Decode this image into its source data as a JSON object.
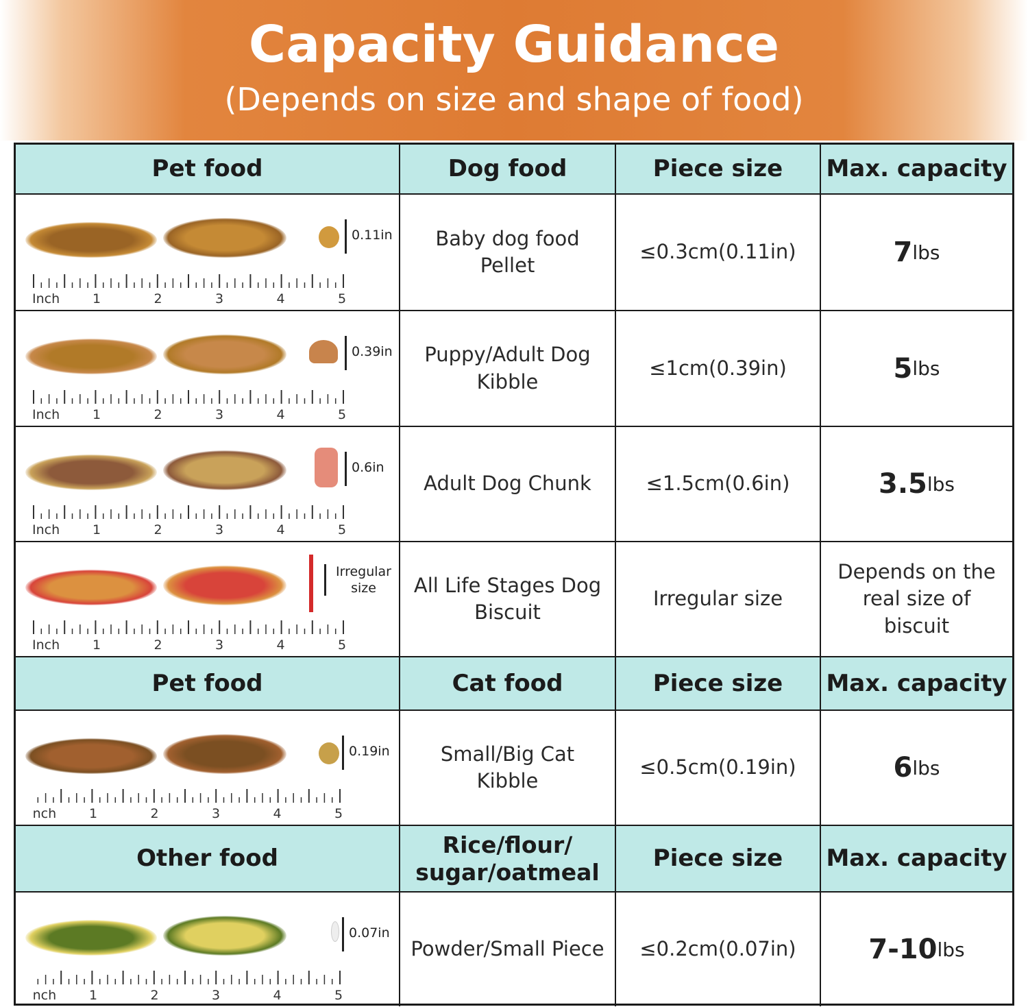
{
  "header": {
    "title": "Capacity Guidance",
    "subtitle": "(Depends on size and shape of food)"
  },
  "ruler": {
    "unit_label": "Inch",
    "labels": [
      "1",
      "2",
      "3",
      "4",
      "5"
    ]
  },
  "sections": [
    {
      "header": [
        "Pet food",
        "Dog food",
        "Piece size",
        "Max. capacity"
      ],
      "rows": [
        {
          "measure": "0.11in",
          "food": "Baby dog food Pellet",
          "size": "≤0.3cm(0.11in)",
          "cap_num": "7",
          "cap_unit": "lbs",
          "colors": [
            "#9a6425",
            "#c58a35"
          ],
          "piece_color": "#d19a3e"
        },
        {
          "measure": "0.39in",
          "food": "Puppy/Adult Dog Kibble",
          "size": "≤1cm(0.39in)",
          "cap_num": "5",
          "cap_unit": "lbs",
          "colors": [
            "#b17a28",
            "#c7884a"
          ],
          "piece_color": "#c8844c"
        },
        {
          "measure": "0.6in",
          "food": "Adult Dog Chunk",
          "size": "≤1.5cm(0.6in)",
          "cap_num": "3.5",
          "cap_unit": "lbs",
          "colors": [
            "#8d5a3b",
            "#c9a25a"
          ],
          "piece_color": "#e58c7a"
        },
        {
          "measure": "Irregular size",
          "food": "All Life Stages Dog Biscuit",
          "size": "Irregular size",
          "cap_text": "Depends on the real size of biscuit",
          "colors": [
            "#dc9140",
            "#d8443a"
          ],
          "piece_color": "#d42a2a"
        }
      ]
    },
    {
      "header": [
        "Pet food",
        "Cat food",
        "Piece size",
        "Max. capacity"
      ],
      "rows": [
        {
          "measure": "0.19in",
          "food": "Small/Big Cat Kibble",
          "size": "≤0.5cm(0.19in)",
          "cap_num": "6",
          "cap_unit": "lbs",
          "colors": [
            "#a1602f",
            "#7b4f22"
          ],
          "piece_color": "#c7a04a"
        }
      ]
    },
    {
      "header": [
        "Other food",
        "Rice/flour/ sugar/oatmeal",
        "Piece size",
        "Max. capacity"
      ],
      "rows": [
        {
          "measure": "0.07in",
          "food": "Powder/Small Piece",
          "size": "≤0.2cm(0.07in)",
          "cap_num": "7-10",
          "cap_unit": "lbs",
          "colors": [
            "#5c7a24",
            "#e0d060"
          ],
          "piece_color": "#eeeeee"
        }
      ]
    }
  ]
}
